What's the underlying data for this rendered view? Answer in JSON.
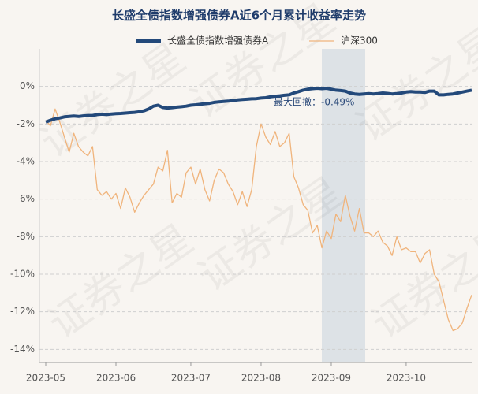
{
  "chart_data": {
    "type": "line",
    "title": "长盛全债指数增强债券A近6个月累计收益率走势",
    "watermark": "证券之星",
    "annotation": "最大回撤：-0.49%",
    "categories": [
      "2023-05",
      null,
      null,
      null,
      null,
      null,
      null,
      null,
      null,
      null,
      null,
      null,
      null,
      null,
      null,
      "2023-06",
      null,
      null,
      null,
      null,
      null,
      null,
      null,
      null,
      null,
      null,
      null,
      null,
      null,
      null,
      null,
      "2023-07",
      null,
      null,
      null,
      null,
      null,
      null,
      null,
      null,
      null,
      null,
      null,
      null,
      null,
      null,
      "2023-08",
      null,
      null,
      null,
      null,
      null,
      null,
      null,
      null,
      null,
      null,
      null,
      null,
      null,
      null,
      "2023-09",
      null,
      null,
      null,
      null,
      null,
      null,
      null,
      null,
      null,
      null,
      null,
      null,
      null,
      null,
      null,
      "2023-10",
      null,
      null,
      null,
      null,
      null,
      null,
      null,
      null,
      null,
      null,
      null,
      null,
      null,
      null
    ],
    "series": [
      {
        "name": "长盛全债指数增强债券A",
        "color": "#23497a",
        "width": 4,
        "values": [
          -1.9,
          -1.8,
          -1.72,
          -1.68,
          -1.62,
          -1.6,
          -1.58,
          -1.6,
          -1.57,
          -1.55,
          -1.55,
          -1.5,
          -1.48,
          -1.5,
          -1.47,
          -1.45,
          -1.44,
          -1.42,
          -1.4,
          -1.38,
          -1.35,
          -1.3,
          -1.2,
          -1.05,
          -1.0,
          -1.12,
          -1.15,
          -1.13,
          -1.1,
          -1.08,
          -1.05,
          -1.0,
          -0.98,
          -0.95,
          -0.92,
          -0.9,
          -0.85,
          -0.82,
          -0.8,
          -0.78,
          -0.75,
          -0.72,
          -0.7,
          -0.68,
          -0.66,
          -0.65,
          -0.62,
          -0.6,
          -0.55,
          -0.52,
          -0.5,
          -0.47,
          -0.45,
          -0.35,
          -0.28,
          -0.2,
          -0.15,
          -0.12,
          -0.1,
          -0.12,
          -0.1,
          -0.15,
          -0.2,
          -0.22,
          -0.25,
          -0.35,
          -0.4,
          -0.42,
          -0.4,
          -0.38,
          -0.4,
          -0.38,
          -0.35,
          -0.37,
          -0.4,
          -0.38,
          -0.35,
          -0.3,
          -0.28,
          -0.3,
          -0.3,
          -0.32,
          -0.25,
          -0.25,
          -0.45,
          -0.45,
          -0.42,
          -0.4,
          -0.35,
          -0.3,
          -0.25,
          -0.2
        ]
      },
      {
        "name": "沪深300",
        "color": "#f0b47c",
        "width": 1.3,
        "values": [
          -1.8,
          -2.1,
          -1.2,
          -1.9,
          -2.7,
          -3.5,
          -2.5,
          -3.2,
          -3.5,
          -3.7,
          -3.2,
          -5.5,
          -5.8,
          -5.6,
          -6.0,
          -5.7,
          -6.5,
          -5.4,
          -5.9,
          -6.7,
          -6.2,
          -5.8,
          -5.5,
          -5.2,
          -4.3,
          -4.5,
          -3.4,
          -6.2,
          -5.7,
          -5.9,
          -4.6,
          -4.3,
          -5.2,
          -4.4,
          -5.5,
          -6.1,
          -5.0,
          -4.4,
          -4.6,
          -5.2,
          -5.6,
          -6.3,
          -5.6,
          -6.4,
          -5.5,
          -3.2,
          -2.0,
          -2.7,
          -3.1,
          -2.4,
          -3.2,
          -3.0,
          -2.5,
          -4.8,
          -5.4,
          -6.3,
          -6.6,
          -7.8,
          -7.4,
          -8.6,
          -7.7,
          -8.1,
          -6.8,
          -7.2,
          -5.8,
          -6.9,
          -7.7,
          -6.5,
          -7.8,
          -7.8,
          -8.0,
          -7.7,
          -8.3,
          -8.5,
          -9.0,
          -8.0,
          -8.7,
          -8.6,
          -8.8,
          -8.8,
          -9.4,
          -8.9,
          -8.7,
          -10.0,
          -10.4,
          -11.4,
          -12.4,
          -13.0,
          -12.9,
          -12.6,
          -11.8,
          -11.1
        ]
      }
    ],
    "ylim": [
      -14.7,
      2
    ],
    "yticks": [
      {
        "value": 0,
        "label": "0%"
      },
      {
        "value": -2,
        "label": "-2%"
      },
      {
        "value": -4,
        "label": "-4%"
      },
      {
        "value": -6,
        "label": "-6%"
      },
      {
        "value": -8,
        "label": "-8%"
      },
      {
        "value": -10,
        "label": "-10%"
      },
      {
        "value": -12,
        "label": "-12%"
      },
      {
        "value": -14,
        "label": "-14%"
      }
    ],
    "grid": true
  }
}
